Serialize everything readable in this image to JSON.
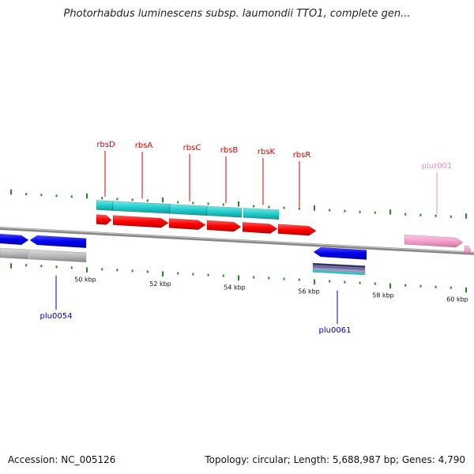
{
  "title": "Photorhabdus luminescens subsp. laumondii TTO1, complete gen...",
  "footer": {
    "accession": "Accession: NC_005126",
    "topology": "Topology: circular; Length: 5,688,987 bp; Genes: 4,790"
  },
  "ruler_labels": [
    "50 kbp",
    "52 kbp",
    "54 kbp",
    "56 kbp",
    "58 kbp",
    "60 kbp"
  ],
  "gene_labels": [
    "rbsD",
    "rbsA",
    "rbsC",
    "rbsB",
    "rbsK",
    "rbsR",
    "plur001",
    "plu0054",
    "plu0061"
  ],
  "colors": {
    "gene_label_red": "#d40000",
    "gene_label_blue": "#0000aa",
    "gene_label_pink": "#f08cc0",
    "cds_red": "#ff0000",
    "cds_blue": "#0000ee",
    "cds_pink": "#f5a0cc",
    "feature_cyan": "#22cccc",
    "feature_gray": "#bbbbbb",
    "tick_green": "#228b22",
    "backbone": "#777777"
  }
}
